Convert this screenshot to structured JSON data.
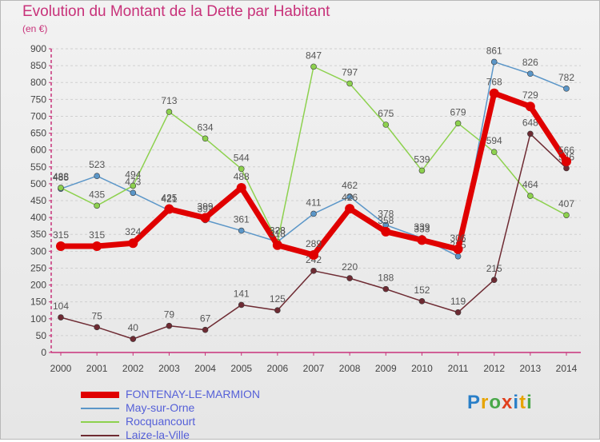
{
  "title": "Evolution du Montant de la Dette par Habitant",
  "unit_label": "(en €)",
  "logo_text": "Proxiti",
  "colors": {
    "title": "#c8327a",
    "axis": "#c8327a",
    "tick_text": "#444444",
    "grid": "#d0d0d0"
  },
  "chart_data": {
    "type": "line",
    "title": "Evolution du Montant de la Dette par Habitant",
    "ylabel": "(en €)",
    "xlabel": "",
    "x": [
      "2000",
      "2001",
      "2002",
      "2003",
      "2004",
      "2005",
      "2006",
      "2007",
      "2008",
      "2009",
      "2010",
      "2011",
      "2012",
      "2013",
      "2014"
    ],
    "ylim": [
      0,
      900
    ],
    "yticks": [
      0,
      50,
      100,
      150,
      200,
      250,
      300,
      350,
      400,
      450,
      500,
      550,
      600,
      650,
      700,
      750,
      800,
      850,
      900
    ],
    "grid": true,
    "legend_position": "bottom-left",
    "series": [
      {
        "name": "FONTENAY-LE-MARMION",
        "color": "#e00000",
        "width": 7,
        "values": [
          315,
          315,
          324,
          425,
          399,
          488,
          318,
          289,
          426,
          358,
          333,
          306,
          768,
          729,
          566
        ]
      },
      {
        "name": "May-sur-Orne",
        "color": "#5b96c8",
        "width": 1.5,
        "values": [
          485,
          523,
          473,
          421,
          392,
          361,
          328,
          411,
          462,
          378,
          339,
          285,
          861,
          826,
          782
        ]
      },
      {
        "name": "Rocquancourt",
        "color": "#8dd14e",
        "width": 1.5,
        "values": [
          488,
          435,
          494,
          713,
          634,
          544,
          328,
          847,
          797,
          675,
          539,
          679,
          594,
          464,
          407
        ]
      },
      {
        "name": "Laize-la-Ville",
        "color": "#6e2b33",
        "width": 1.5,
        "values": [
          104,
          75,
          40,
          79,
          67,
          141,
          125,
          242,
          220,
          188,
          152,
          119,
          215,
          648,
          546
        ]
      }
    ]
  }
}
